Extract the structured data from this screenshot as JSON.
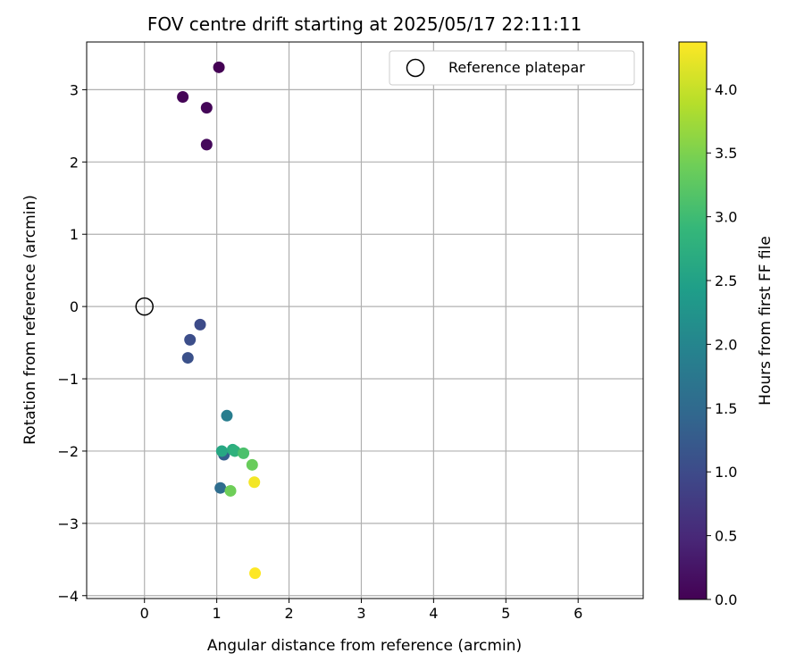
{
  "chart_data": {
    "type": "scatter",
    "title": "FOV centre drift starting at 2025/05/17 22:11:11",
    "xlabel": "Angular distance from reference (arcmin)",
    "ylabel": "Rotation from reference (arcmin)",
    "xlim": [
      -0.8,
      6.9
    ],
    "ylim": [
      -4.04,
      3.66
    ],
    "x_ticks": [
      0,
      1,
      2,
      3,
      4,
      5,
      6
    ],
    "x_tick_labels": [
      "0",
      "1",
      "2",
      "3",
      "4",
      "5",
      "6"
    ],
    "y_ticks": [
      -4,
      -3,
      -2,
      -1,
      0,
      1,
      2,
      3
    ],
    "y_tick_labels": [
      "−4",
      "−3",
      "−2",
      "−1",
      "0",
      "1",
      "2",
      "3"
    ],
    "grid": true,
    "legend": {
      "placement": "top-right",
      "entries": [
        {
          "label": "Reference platepar",
          "marker": "open-circle"
        }
      ]
    },
    "reference_point": {
      "x": 0,
      "y": 0,
      "label": "Reference platepar"
    },
    "colorbar": {
      "label": "Hours from first FF file",
      "colormap": "viridis",
      "range": [
        0,
        4.37
      ],
      "ticks": [
        0,
        0.5,
        1,
        1.5,
        2,
        2.5,
        3,
        3.5,
        4
      ],
      "tick_labels": [
        "0.0",
        "0.5",
        "1.0",
        "1.5",
        "2.0",
        "2.5",
        "3.0",
        "3.5",
        "4.0"
      ]
    },
    "points": [
      {
        "x": 1.03,
        "y": 3.31,
        "hours": 0.0
      },
      {
        "x": 0.53,
        "y": 2.9,
        "hours": 0.03
      },
      {
        "x": 0.86,
        "y": 2.75,
        "hours": 0.06
      },
      {
        "x": 0.86,
        "y": 2.24,
        "hours": 0.1
      },
      {
        "x": 0.77,
        "y": -0.25,
        "hours": 1.0
      },
      {
        "x": 0.63,
        "y": -0.46,
        "hours": 1.05
      },
      {
        "x": 0.6,
        "y": -0.71,
        "hours": 1.1
      },
      {
        "x": 1.1,
        "y": -2.05,
        "hours": 1.3
      },
      {
        "x": 1.05,
        "y": -2.51,
        "hours": 1.55
      },
      {
        "x": 1.14,
        "y": -1.51,
        "hours": 1.85
      },
      {
        "x": 1.07,
        "y": -2.0,
        "hours": 2.6
      },
      {
        "x": 1.22,
        "y": -1.98,
        "hours": 2.7
      },
      {
        "x": 1.25,
        "y": -2.0,
        "hours": 2.8
      },
      {
        "x": 1.37,
        "y": -2.03,
        "hours": 3.1
      },
      {
        "x": 1.49,
        "y": -2.19,
        "hours": 3.35
      },
      {
        "x": 1.19,
        "y": -2.55,
        "hours": 3.4
      },
      {
        "x": 1.52,
        "y": -2.43,
        "hours": 4.3
      },
      {
        "x": 1.53,
        "y": -3.69,
        "hours": 4.37
      }
    ]
  }
}
